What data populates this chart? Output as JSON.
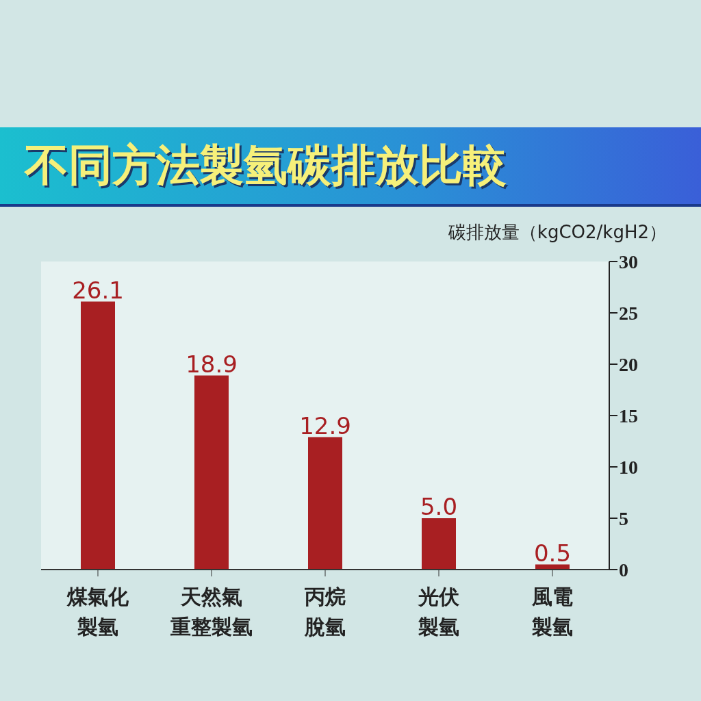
{
  "chart_data": {
    "type": "bar",
    "title": "不同方法製氫碳排放比較",
    "ylabel": "碳排放量（kgCO2/kgH2）",
    "categories": [
      "煤氣化製氫",
      "天然氣重整製氫",
      "丙烷脫氫",
      "光伏製氫",
      "風電製氫"
    ],
    "values": [
      26.1,
      18.9,
      12.9,
      5.0,
      0.5
    ],
    "value_labels": [
      "26.1",
      "18.9",
      "12.9",
      "5.0",
      "0.5"
    ],
    "color": "#a81f22",
    "ylim": [
      0,
      30
    ],
    "yticks": [
      0,
      5,
      10,
      15,
      20,
      25,
      30
    ],
    "grid": false
  }
}
